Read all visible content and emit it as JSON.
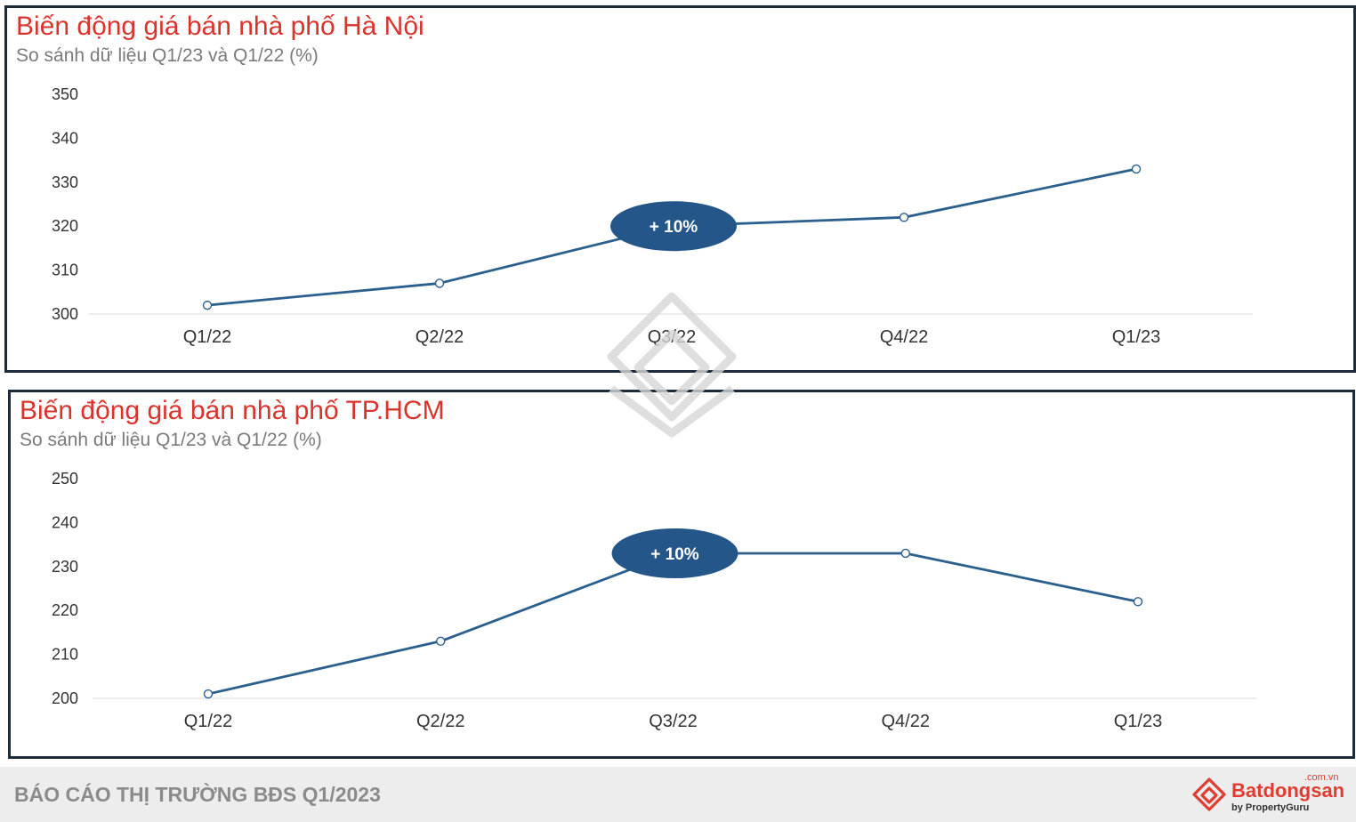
{
  "chart_data": [
    {
      "type": "line",
      "title": "Biến động giá bán nhà phố Hà Nội",
      "subtitle": "So sánh dữ liệu Q1/23 và Q1/22 (%)",
      "categories": [
        "Q1/22",
        "Q2/22",
        "Q3/22",
        "Q4/22",
        "Q1/23"
      ],
      "values": [
        302,
        307,
        320,
        322,
        333
      ],
      "yticks": [
        300,
        310,
        320,
        330,
        340,
        350
      ],
      "ylim": [
        300,
        350
      ],
      "grid": false,
      "annotation": {
        "text": "+ 10%",
        "category": "Q3/22"
      },
      "color": "#2b5f8e",
      "annotation_color": "#24568a"
    },
    {
      "type": "line",
      "title": "Biến động giá bán nhà phố TP.HCM",
      "subtitle": "So sánh dữ liệu Q1/23 và Q1/22 (%)",
      "categories": [
        "Q1/22",
        "Q2/22",
        "Q3/22",
        "Q4/22",
        "Q1/23"
      ],
      "values": [
        201,
        213,
        233,
        233,
        222
      ],
      "yticks": [
        200,
        210,
        220,
        230,
        240,
        250
      ],
      "ylim": [
        200,
        250
      ],
      "grid": false,
      "annotation": {
        "text": "+ 10%",
        "category": "Q3/22"
      },
      "color": "#2b5f8e",
      "annotation_color": "#24568a"
    }
  ],
  "footer": {
    "report_title": "BÁO CÁO THỊ TRƯỜNG BĐS Q1/2023",
    "brand_name": "Batdongsan",
    "brand_domain": ".com.vn",
    "brand_by": "by PropertyGuru"
  }
}
